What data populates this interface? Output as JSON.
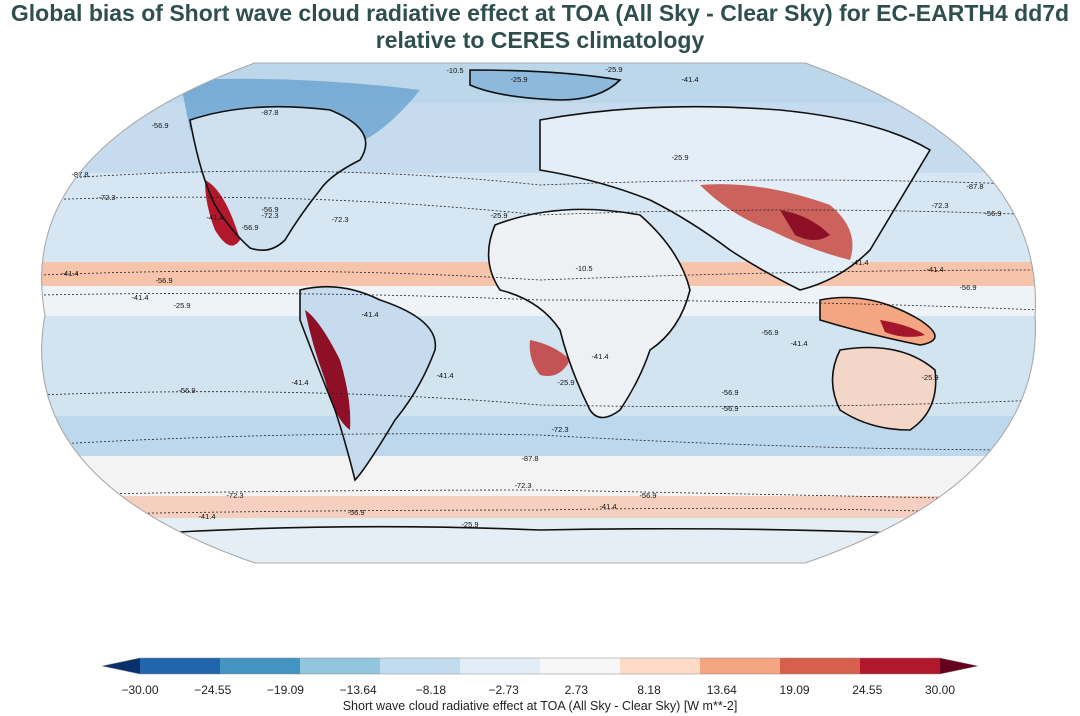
{
  "title": {
    "line1": "Global bias of Short wave cloud radiative effect at TOA (All Sky - Clear Sky) for EC-EARTH4 dd7d",
    "line2": "relative to CERES climatology"
  },
  "map": {
    "projection": "robinson",
    "contour_labels": [
      "-10.5",
      "-25.9",
      "-41.4",
      "-25.9",
      "-56.9",
      "-87.8",
      "-72.3",
      "-41.4",
      "-56.9",
      "-72.3",
      "-56.9",
      "-41.4",
      "-41.4",
      "-56.9",
      "-25.9",
      "-41.4",
      "-41.4",
      "-25.9",
      "-56.9",
      "-72.3",
      "-87.8",
      "-72.3",
      "-56.9",
      "-41.4",
      "-10.5",
      "-25.9",
      "-41.4",
      "-41.4",
      "-56.9",
      "-56.9",
      "-41.4",
      "-41.4",
      "-56.9",
      "-72.3",
      "-87.8",
      "-72.3",
      "-56.9",
      "-41.4",
      "-56.9",
      "-25.9",
      "-25.9",
      "-87.8",
      "-72.3",
      "-56.9",
      "-41.4",
      "-25.9"
    ]
  },
  "colorbar": {
    "label": "Short wave cloud radiative effect at TOA (All Sky - Clear Sky) [W m**-2]",
    "ticks": [
      "−30.00",
      "−24.55",
      "−19.09",
      "−13.64",
      "−8.18",
      "−2.73",
      "2.73",
      "8.18",
      "13.64",
      "19.09",
      "24.55",
      "30.00"
    ],
    "colors": [
      "#08306b",
      "#2166ac",
      "#4393c3",
      "#92c5de",
      "#c1dcee",
      "#e2eef6",
      "#f7f7f7",
      "#fddbc7",
      "#f4a582",
      "#d6604d",
      "#b2182b",
      "#67001f"
    ]
  }
}
